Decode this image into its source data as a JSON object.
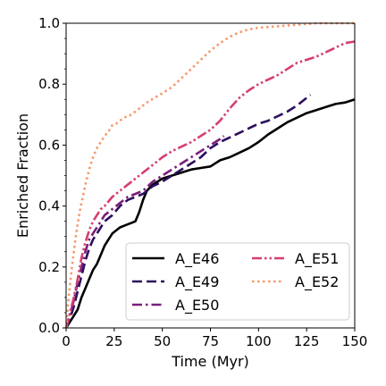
{
  "chart_data": {
    "type": "line",
    "xlabel": "Time (Myr)",
    "ylabel": "Enriched Fraction",
    "xlim": [
      0,
      150
    ],
    "ylim": [
      0,
      1.0
    ],
    "xticks": [
      "0",
      "25",
      "50",
      "75",
      "100",
      "125",
      "150"
    ],
    "yticks": [
      "0.0",
      "0.2",
      "0.4",
      "0.6",
      "0.8",
      "1.0"
    ],
    "grid": false,
    "legend_position": "lower-right",
    "series": [
      {
        "name": "A_E46",
        "color": "#000000",
        "dash": "solid",
        "x": [
          0,
          2,
          4,
          6,
          8,
          10,
          12,
          14,
          16,
          18,
          20,
          22,
          24,
          26,
          28,
          30,
          32,
          34,
          36,
          38,
          40,
          42,
          45,
          50,
          55,
          60,
          65,
          70,
          75,
          80,
          85,
          90,
          95,
          100,
          105,
          110,
          115,
          120,
          125,
          130,
          135,
          140,
          145,
          150
        ],
        "y": [
          0.0,
          0.02,
          0.04,
          0.06,
          0.1,
          0.13,
          0.16,
          0.19,
          0.21,
          0.24,
          0.27,
          0.29,
          0.31,
          0.32,
          0.33,
          0.335,
          0.34,
          0.345,
          0.35,
          0.38,
          0.42,
          0.45,
          0.47,
          0.49,
          0.5,
          0.51,
          0.52,
          0.525,
          0.53,
          0.55,
          0.56,
          0.575,
          0.59,
          0.61,
          0.635,
          0.655,
          0.675,
          0.69,
          0.705,
          0.715,
          0.725,
          0.735,
          0.74,
          0.75
        ]
      },
      {
        "name": "A_E49",
        "color": "#2c0f5e",
        "dash": "dash",
        "x": [
          0,
          2,
          4,
          6,
          8,
          10,
          12,
          14,
          16,
          18,
          20,
          24,
          28,
          32,
          36,
          40,
          45,
          50,
          55,
          60,
          65,
          70,
          75,
          80,
          85,
          90,
          95,
          100,
          105,
          110,
          115,
          120,
          125,
          127
        ],
        "y": [
          0.0,
          0.03,
          0.07,
          0.12,
          0.17,
          0.22,
          0.26,
          0.29,
          0.31,
          0.33,
          0.35,
          0.37,
          0.4,
          0.42,
          0.43,
          0.44,
          0.465,
          0.48,
          0.5,
          0.52,
          0.54,
          0.56,
          0.59,
          0.61,
          0.625,
          0.64,
          0.655,
          0.67,
          0.68,
          0.695,
          0.71,
          0.73,
          0.755,
          0.765
        ]
      },
      {
        "name": "A_E50",
        "color": "#7b1d7a",
        "dash": "dashdot",
        "x": [
          0,
          2,
          4,
          6,
          8,
          10,
          12,
          14,
          16,
          18,
          20,
          24,
          28,
          32,
          36,
          40,
          45,
          50,
          55,
          60,
          65,
          70,
          75,
          80,
          82
        ],
        "y": [
          0.0,
          0.04,
          0.09,
          0.15,
          0.2,
          0.25,
          0.29,
          0.31,
          0.33,
          0.35,
          0.37,
          0.39,
          0.41,
          0.43,
          0.44,
          0.45,
          0.48,
          0.5,
          0.52,
          0.54,
          0.56,
          0.58,
          0.6,
          0.62,
          0.63
        ]
      },
      {
        "name": "A_E51",
        "color": "#d63f6e",
        "dash": "dashdotdot",
        "x": [
          0,
          2,
          4,
          6,
          8,
          10,
          12,
          14,
          16,
          18,
          20,
          24,
          28,
          32,
          36,
          40,
          45,
          50,
          55,
          60,
          65,
          70,
          75,
          80,
          85,
          90,
          95,
          100,
          105,
          110,
          115,
          120,
          125,
          130,
          135,
          140,
          145,
          150
        ],
        "y": [
          0.0,
          0.05,
          0.1,
          0.16,
          0.23,
          0.28,
          0.32,
          0.35,
          0.37,
          0.39,
          0.4,
          0.43,
          0.45,
          0.47,
          0.49,
          0.51,
          0.535,
          0.56,
          0.58,
          0.595,
          0.61,
          0.63,
          0.65,
          0.68,
          0.72,
          0.755,
          0.78,
          0.8,
          0.815,
          0.83,
          0.85,
          0.87,
          0.88,
          0.89,
          0.905,
          0.92,
          0.935,
          0.94
        ]
      },
      {
        "name": "A_E52",
        "color": "#f59a6e",
        "dash": "dotted",
        "x": [
          0,
          1,
          2,
          3,
          4,
          5,
          6,
          7,
          8,
          9,
          10,
          12,
          14,
          16,
          18,
          20,
          22,
          24,
          26,
          28,
          30,
          34,
          38,
          42,
          46,
          50,
          55,
          60,
          65,
          70,
          75,
          80,
          85,
          90,
          95,
          100,
          110,
          120,
          130,
          140,
          150
        ],
        "y": [
          0.0,
          0.08,
          0.14,
          0.2,
          0.25,
          0.3,
          0.34,
          0.38,
          0.41,
          0.44,
          0.47,
          0.52,
          0.56,
          0.59,
          0.61,
          0.63,
          0.645,
          0.665,
          0.67,
          0.68,
          0.69,
          0.7,
          0.72,
          0.74,
          0.755,
          0.77,
          0.79,
          0.82,
          0.85,
          0.88,
          0.91,
          0.935,
          0.955,
          0.97,
          0.98,
          0.985,
          0.99,
          0.995,
          1.0,
          1.0,
          1.0
        ]
      }
    ]
  }
}
